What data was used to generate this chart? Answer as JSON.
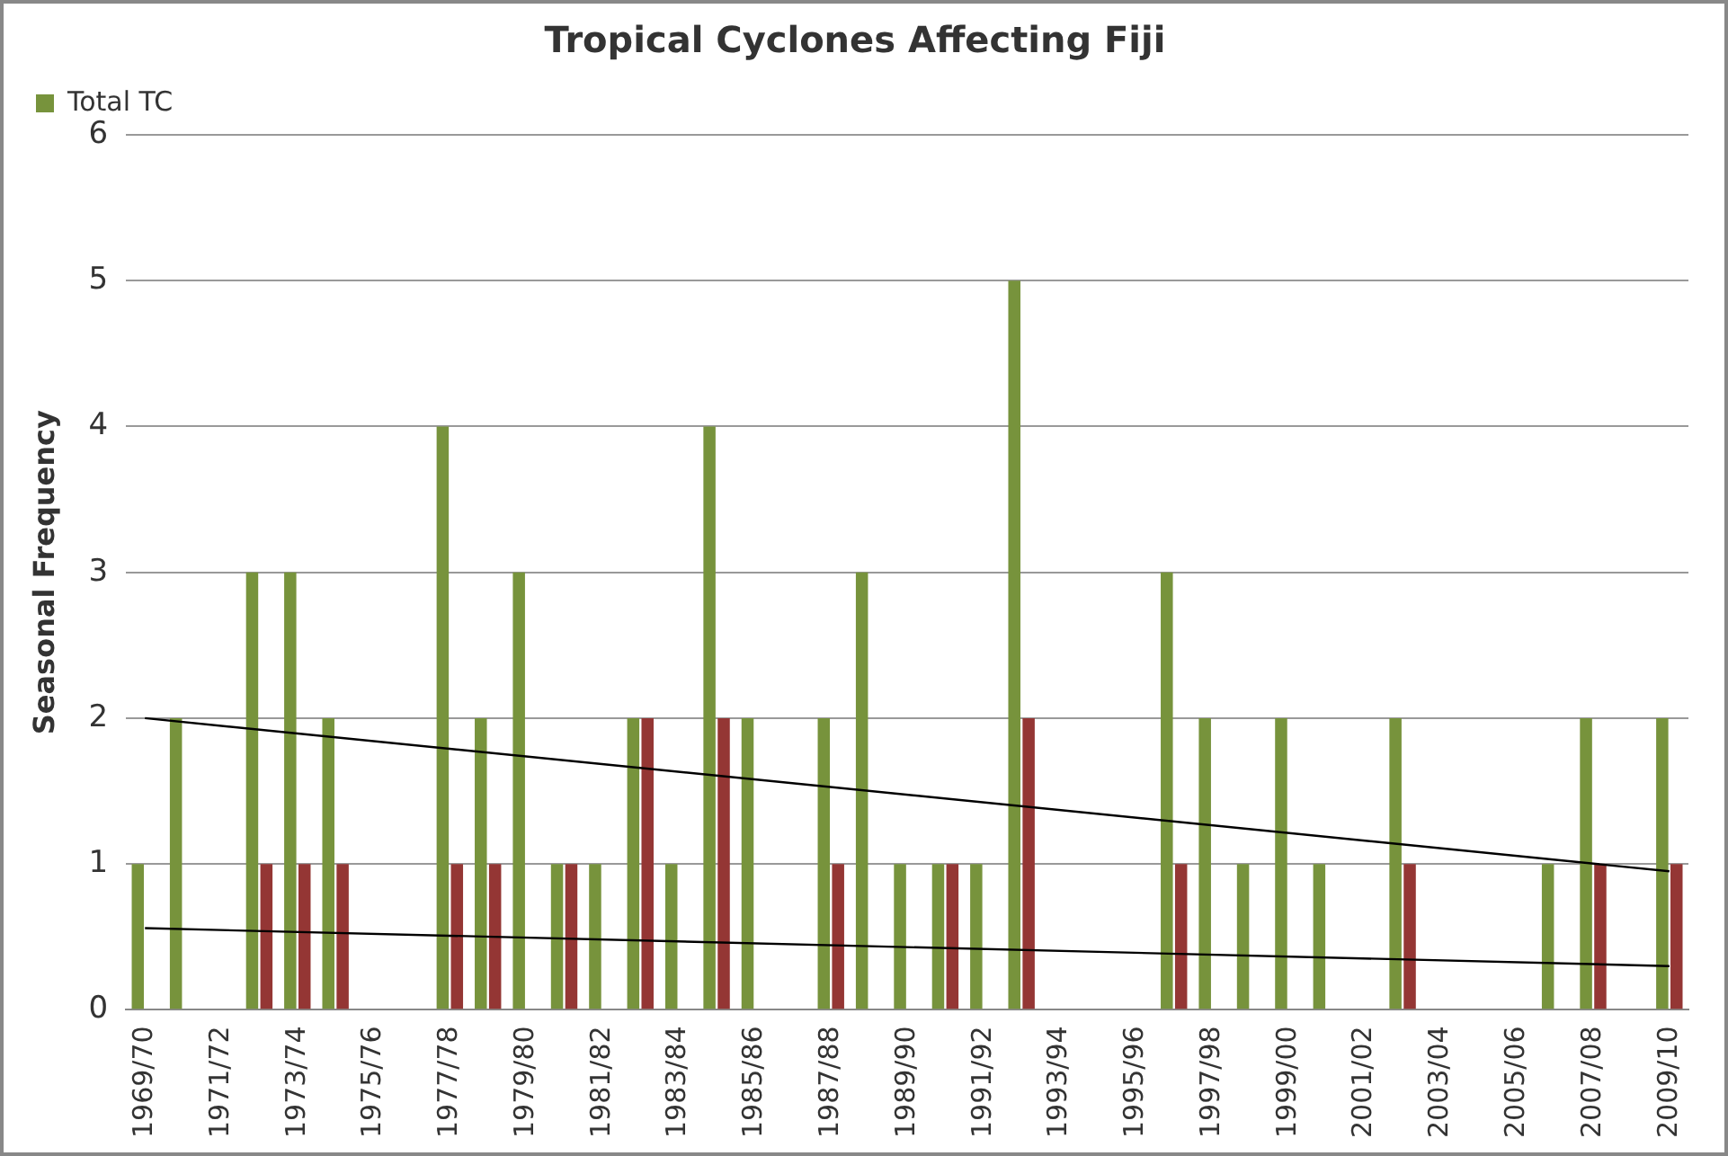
{
  "chart_data": {
    "type": "bar",
    "title": "Tropical Cyclones Affecting Fiji",
    "ylabel": "Seasonal Frequency",
    "categories": [
      "1969/70",
      null,
      "1971/72",
      null,
      "1973/74",
      null,
      "1975/76",
      null,
      "1977/78",
      null,
      "1979/80",
      null,
      "1981/82",
      null,
      "1983/84",
      null,
      "1985/86",
      null,
      "1987/88",
      null,
      "1989/90",
      null,
      "1991/92",
      null,
      "1993/94",
      null,
      "1995/96",
      null,
      "1997/98",
      null,
      "1999/00",
      null,
      "2001/02",
      null,
      "2003/04",
      null,
      "2005/06",
      null,
      "2007/08",
      null,
      "2009/10"
    ],
    "series": [
      {
        "name": "Total TC",
        "color": "#77933c",
        "values": [
          1,
          2,
          0,
          3,
          3,
          2,
          0,
          0,
          4,
          2,
          3,
          1,
          1,
          2,
          1,
          4,
          2,
          0,
          2,
          3,
          1,
          1,
          1,
          5,
          0,
          0,
          0,
          3,
          2,
          1,
          2,
          1,
          0,
          2,
          0,
          0,
          0,
          1,
          2,
          0,
          2
        ]
      },
      {
        "color": "#943634",
        "values": [
          0,
          0,
          0,
          1,
          1,
          1,
          0,
          0,
          1,
          1,
          0,
          1,
          0,
          2,
          0,
          2,
          0,
          0,
          1,
          0,
          0,
          1,
          0,
          2,
          0,
          0,
          0,
          1,
          0,
          0,
          0,
          0,
          0,
          1,
          0,
          0,
          0,
          0,
          1,
          0,
          1
        ]
      },
      {
        "type": "line",
        "color": "#000000",
        "x": [
          "1969/70",
          "2009/10"
        ],
        "values": [
          2.0,
          0.95
        ]
      },
      {
        "type": "line",
        "color": "#000000",
        "x": [
          "1969/70",
          "2009/10"
        ],
        "values": [
          0.56,
          0.3
        ]
      }
    ],
    "ylim": [
      0,
      6
    ],
    "yticks": [
      0,
      1,
      2,
      3,
      4,
      5,
      6
    ],
    "grid": "y",
    "legend": "top left",
    "marker": "none",
    "line_style": "solid"
  }
}
